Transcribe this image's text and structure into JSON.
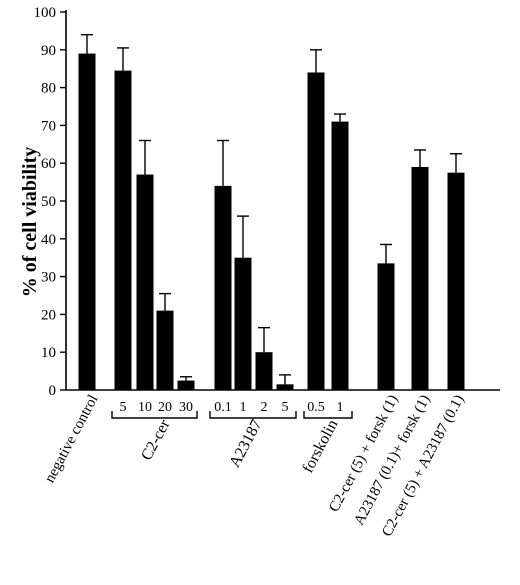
{
  "chart_data": {
    "type": "bar",
    "ylabel": "% of cell viability",
    "ylim": [
      0,
      100
    ],
    "yticks": [
      0,
      10,
      20,
      30,
      40,
      50,
      60,
      70,
      80,
      90,
      100
    ],
    "grid": false,
    "bar_color": "#000000",
    "bars": [
      {
        "value": 89,
        "error": 5
      },
      {
        "value": 84.5,
        "error": 6
      },
      {
        "value": 57,
        "error": 9
      },
      {
        "value": 21,
        "error": 4.5
      },
      {
        "value": 2.5,
        "error": 1
      },
      {
        "value": 54,
        "error": 12
      },
      {
        "value": 35,
        "error": 11
      },
      {
        "value": 10,
        "error": 6.5
      },
      {
        "value": 1.5,
        "error": 2.5
      },
      {
        "value": 84,
        "error": 6
      },
      {
        "value": 71,
        "error": 2
      },
      {
        "value": 33.5,
        "error": 5
      },
      {
        "value": 59,
        "error": 4.5
      },
      {
        "value": 57.5,
        "error": 5
      }
    ],
    "concentration_labels": [
      "",
      "5",
      "10",
      "20",
      "30",
      "0.1",
      "1",
      "2",
      "5",
      "0.5",
      "1",
      "",
      "",
      ""
    ],
    "category_labels": [
      "negative control",
      "C2-cer",
      "A23187",
      "forskolin",
      "C2-cer (5) + forsk (1)",
      "A23187 (0.1)+ forsk (1)",
      "C2-cer (5) + A23187 (0.1)"
    ]
  }
}
